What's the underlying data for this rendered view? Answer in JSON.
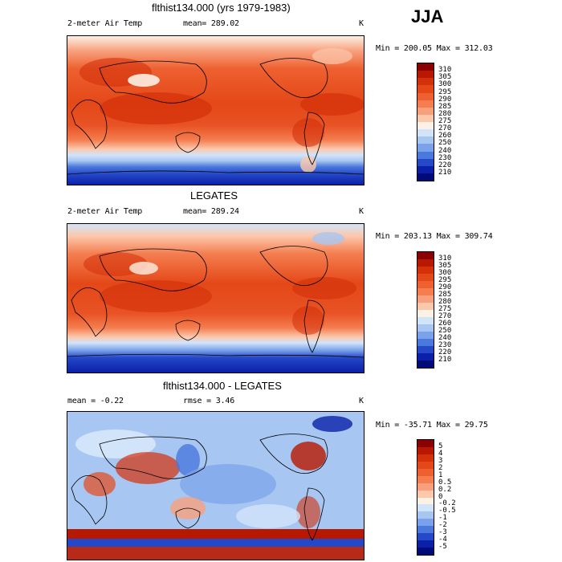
{
  "season": "JJA",
  "panels": [
    {
      "title": "flthist134.000 (yrs 1979-1983)",
      "left_label": "2-meter Air Temp",
      "mid_label": "mean= 289.02",
      "right_label": "K",
      "minmax": "Min = 200.05 Max = 312.03"
    },
    {
      "title": "LEGATES",
      "left_label": "2-meter Air Temp",
      "mid_label": "mean= 289.24",
      "right_label": "K",
      "minmax": "Min = 203.13 Max = 309.74"
    },
    {
      "title": "flthist134.000 - LEGATES",
      "left_label": "mean = -0.22",
      "mid_label": "rmse = 3.46",
      "right_label": "K",
      "minmax": "Min = -35.71 Max = 29.75"
    }
  ],
  "colorbar_abs": {
    "labels": [
      "310",
      "305",
      "300",
      "295",
      "290",
      "285",
      "280",
      "275",
      "270",
      "260",
      "250",
      "240",
      "230",
      "220",
      "210"
    ],
    "colors": [
      "#8b0000",
      "#b81800",
      "#d4300a",
      "#e44818",
      "#ee6030",
      "#f47e50",
      "#f8a07c",
      "#fcc8ac",
      "#fdf0e4",
      "#d2e4fa",
      "#a8c6f2",
      "#7aa2ea",
      "#4a78dc",
      "#2448c8",
      "#0a20a8",
      "#000a78"
    ]
  },
  "colorbar_diff": {
    "labels": [
      "5",
      "4",
      "3",
      "2",
      "1",
      "0.5",
      "0.2",
      "0",
      "-0.2",
      "-0.5",
      "-1",
      "-2",
      "-3",
      "-4",
      "-5"
    ],
    "colors": [
      "#8b0000",
      "#b81800",
      "#d4300a",
      "#e44818",
      "#ee6030",
      "#f47e50",
      "#f8a07c",
      "#fcc8ac",
      "#fdf0e4",
      "#d2e4fa",
      "#a8c6f2",
      "#7aa2ea",
      "#4a78dc",
      "#2448c8",
      "#0a20a8",
      "#000a78"
    ]
  }
}
